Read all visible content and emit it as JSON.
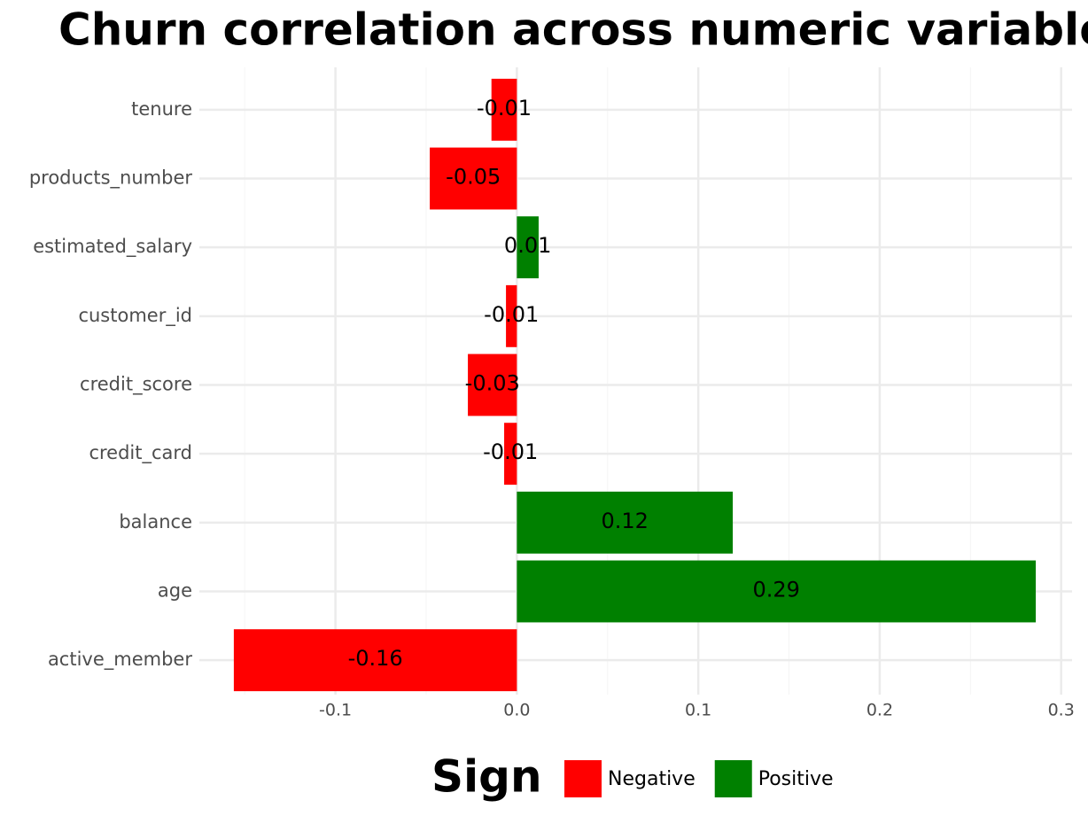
{
  "chart_data": {
    "type": "bar",
    "orientation": "horizontal",
    "title": "Churn correlation across numeric variables",
    "categories": [
      "tenure",
      "products_number",
      "estimated_salary",
      "customer_id",
      "credit_score",
      "credit_card",
      "balance",
      "age",
      "active_member"
    ],
    "series": [
      {
        "name": "Negative",
        "color": "#ff0000",
        "values": [
          -0.014,
          -0.048,
          null,
          -0.006,
          -0.027,
          -0.007,
          null,
          null,
          -0.156
        ],
        "value_labels": [
          "-0.01",
          "-0.05",
          null,
          "-0.01",
          "-0.03",
          "-0.01",
          null,
          null,
          "-0.16"
        ]
      },
      {
        "name": "Positive",
        "color": "#008000",
        "values": [
          null,
          null,
          0.012,
          null,
          null,
          null,
          0.119,
          0.286,
          null
        ],
        "value_labels": [
          null,
          null,
          "0.01",
          null,
          null,
          null,
          "0.12",
          "0.29",
          null
        ]
      }
    ],
    "legend_title": "Sign",
    "legend_position": "bottom",
    "xlim": [
      -0.175,
      0.306
    ],
    "xticks": [
      -0.1,
      {
        "value": 0,
        "label": "0.0"
      },
      0.1,
      0.2,
      0.3
    ],
    "grid": true
  }
}
